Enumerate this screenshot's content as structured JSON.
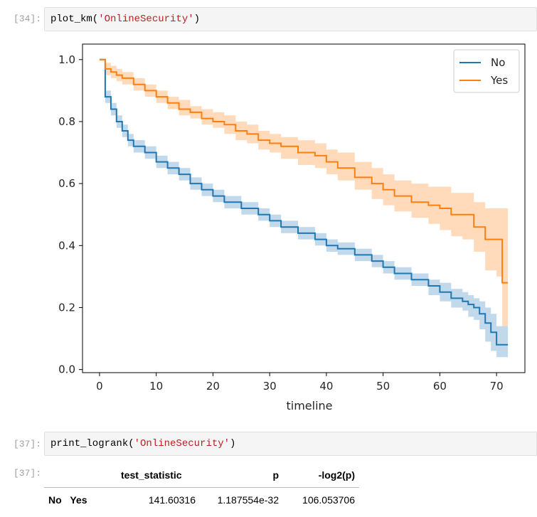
{
  "cells": [
    {
      "prompt": "[34]:",
      "fn": "plot_km(",
      "arg": "'OnlineSecurity'",
      "close": ")"
    },
    {
      "prompt": "[37]:",
      "fn": "print_logrank(",
      "arg": "'OnlineSecurity'",
      "close": ")"
    }
  ],
  "output_prompt": "[37]:",
  "colors": {
    "no": "#1f77b4",
    "yes": "#ff7f0e"
  },
  "chart_data": {
    "type": "line",
    "xlabel": "timeline",
    "ylabel": "",
    "xlim": [
      -3,
      75
    ],
    "ylim": [
      -0.01,
      1.05
    ],
    "xticks": [
      0,
      10,
      20,
      30,
      40,
      50,
      60,
      70
    ],
    "yticks": [
      0.0,
      0.2,
      0.4,
      0.6,
      0.8,
      1.0
    ],
    "legend_position": "top-right",
    "step": true,
    "confidence_band": true,
    "series": [
      {
        "name": "No",
        "x": [
          0,
          1,
          2,
          3,
          4,
          5,
          6,
          8,
          10,
          12,
          14,
          16,
          18,
          20,
          22,
          25,
          28,
          30,
          32,
          35,
          38,
          40,
          42,
          45,
          48,
          50,
          52,
          55,
          58,
          60,
          62,
          64,
          65,
          66,
          67,
          68,
          69,
          70,
          72
        ],
        "y": [
          1.0,
          0.88,
          0.84,
          0.8,
          0.77,
          0.74,
          0.72,
          0.7,
          0.67,
          0.65,
          0.63,
          0.6,
          0.58,
          0.56,
          0.54,
          0.52,
          0.5,
          0.48,
          0.46,
          0.44,
          0.42,
          0.4,
          0.39,
          0.37,
          0.35,
          0.33,
          0.31,
          0.29,
          0.27,
          0.25,
          0.23,
          0.22,
          0.21,
          0.2,
          0.18,
          0.15,
          0.12,
          0.08,
          0.08
        ],
        "lower": [
          1.0,
          0.86,
          0.82,
          0.78,
          0.75,
          0.72,
          0.7,
          0.68,
          0.65,
          0.63,
          0.61,
          0.58,
          0.56,
          0.54,
          0.52,
          0.5,
          0.48,
          0.46,
          0.44,
          0.42,
          0.4,
          0.38,
          0.37,
          0.35,
          0.33,
          0.31,
          0.29,
          0.27,
          0.24,
          0.22,
          0.2,
          0.19,
          0.17,
          0.16,
          0.13,
          0.09,
          0.06,
          0.04,
          0.04
        ],
        "upper": [
          1.0,
          0.9,
          0.86,
          0.82,
          0.79,
          0.76,
          0.74,
          0.72,
          0.69,
          0.67,
          0.65,
          0.62,
          0.6,
          0.58,
          0.56,
          0.54,
          0.52,
          0.5,
          0.48,
          0.46,
          0.44,
          0.42,
          0.41,
          0.39,
          0.37,
          0.35,
          0.33,
          0.31,
          0.29,
          0.28,
          0.26,
          0.25,
          0.24,
          0.23,
          0.22,
          0.2,
          0.18,
          0.14,
          0.14
        ]
      },
      {
        "name": "Yes",
        "x": [
          0,
          1,
          2,
          3,
          4,
          6,
          8,
          10,
          12,
          14,
          16,
          18,
          20,
          22,
          24,
          26,
          28,
          30,
          32,
          35,
          38,
          40,
          42,
          45,
          48,
          50,
          52,
          55,
          58,
          60,
          62,
          64,
          66,
          68,
          70,
          71,
          72
        ],
        "y": [
          1.0,
          0.97,
          0.96,
          0.95,
          0.94,
          0.92,
          0.9,
          0.88,
          0.86,
          0.84,
          0.83,
          0.81,
          0.8,
          0.79,
          0.77,
          0.76,
          0.74,
          0.73,
          0.72,
          0.7,
          0.69,
          0.67,
          0.65,
          0.62,
          0.6,
          0.58,
          0.56,
          0.54,
          0.53,
          0.52,
          0.5,
          0.5,
          0.46,
          0.42,
          0.42,
          0.28,
          0.28
        ],
        "lower": [
          1.0,
          0.95,
          0.94,
          0.93,
          0.92,
          0.9,
          0.88,
          0.86,
          0.84,
          0.82,
          0.81,
          0.79,
          0.78,
          0.76,
          0.74,
          0.73,
          0.71,
          0.7,
          0.68,
          0.66,
          0.65,
          0.63,
          0.61,
          0.58,
          0.55,
          0.53,
          0.51,
          0.49,
          0.47,
          0.45,
          0.43,
          0.42,
          0.38,
          0.32,
          0.3,
          0.14,
          0.14
        ],
        "upper": [
          1.0,
          0.99,
          0.98,
          0.97,
          0.96,
          0.94,
          0.92,
          0.9,
          0.88,
          0.87,
          0.85,
          0.84,
          0.83,
          0.82,
          0.8,
          0.79,
          0.77,
          0.76,
          0.75,
          0.74,
          0.73,
          0.71,
          0.7,
          0.67,
          0.65,
          0.63,
          0.61,
          0.6,
          0.59,
          0.59,
          0.57,
          0.57,
          0.54,
          0.52,
          0.52,
          0.52,
          0.52
        ]
      }
    ]
  },
  "logrank_table": {
    "columns": [
      "test_statistic",
      "p",
      "-log2(p)"
    ],
    "rows": [
      {
        "index": [
          "No",
          "Yes"
        ],
        "values": [
          "141.60316",
          "1.187554e-32",
          "106.053706"
        ]
      }
    ]
  }
}
